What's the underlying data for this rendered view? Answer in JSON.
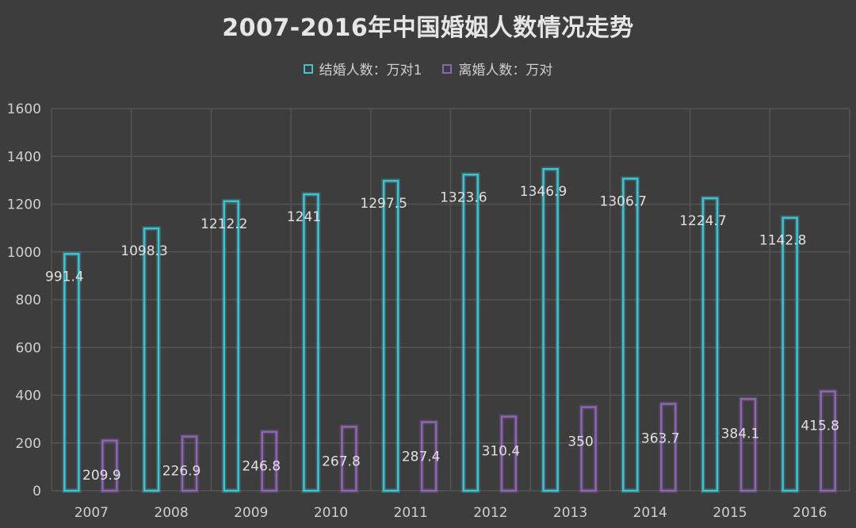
{
  "chart_data": {
    "type": "bar",
    "title": "2007-2016年中国婚姻人数情况走势",
    "categories": [
      "2007",
      "2008",
      "2009",
      "2010",
      "2011",
      "2012",
      "2013",
      "2014",
      "2015",
      "2016"
    ],
    "series": [
      {
        "name": "结婚人数：万对1",
        "color": "#3fc3d3",
        "values": [
          991.4,
          1098.3,
          1212.2,
          1241,
          1297.5,
          1323.6,
          1346.9,
          1306.7,
          1224.7,
          1142.8
        ],
        "labels": [
          "991.4",
          "1098.3",
          "1212.2",
          "1241",
          "1297.5",
          "1323.6",
          "1346.9",
          "1306.7",
          "1224.7",
          "1142.8"
        ]
      },
      {
        "name": "离婚人数：万对",
        "color": "#8e64b5",
        "values": [
          209.9,
          226.9,
          246.8,
          267.8,
          287.4,
          310.4,
          350,
          363.7,
          384.1,
          415.8
        ],
        "labels": [
          "209.9",
          "226.9",
          "246.8",
          "267.8",
          "287.4",
          "310.4",
          "350",
          "363.7",
          "384.1",
          "415.8"
        ]
      }
    ],
    "ylim": [
      0,
      1600
    ],
    "yticks": [
      "0",
      "200",
      "400",
      "600",
      "800",
      "1000",
      "1200",
      "1400",
      "1600"
    ],
    "grid": true,
    "legend": "top-center"
  }
}
